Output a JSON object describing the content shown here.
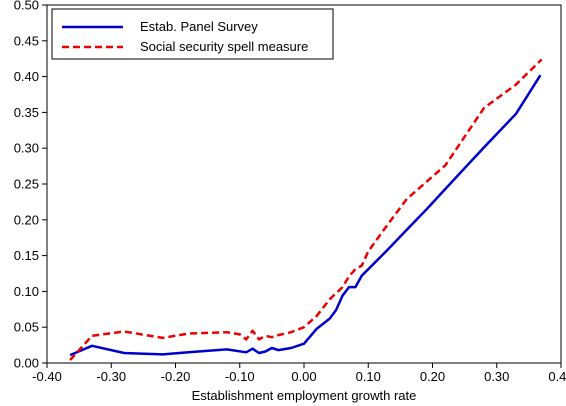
{
  "chart_data": {
    "type": "line",
    "title": "",
    "xlabel": "Establishment employment growth rate",
    "ylabel": "",
    "xlim": [
      -0.4,
      0.4
    ],
    "ylim": [
      0.0,
      0.5
    ],
    "x_ticks": [
      "-0.40",
      "-0.30",
      "-0.20",
      "-0.10",
      "0.00",
      "0.10",
      "0.20",
      "0.30",
      "0.40"
    ],
    "y_ticks": [
      "0.00",
      "0.05",
      "0.10",
      "0.15",
      "0.20",
      "0.25",
      "0.30",
      "0.35",
      "0.40",
      "0.45",
      "0.50"
    ],
    "grid": false,
    "legend_position": "top-left",
    "series": [
      {
        "name": "Estab. Panel Survey",
        "color": "#0000cc",
        "dash": "solid",
        "points": [
          [
            -0.364,
            0.011
          ],
          [
            -0.33,
            0.024
          ],
          [
            -0.28,
            0.014
          ],
          [
            -0.22,
            0.012
          ],
          [
            -0.18,
            0.015
          ],
          [
            -0.12,
            0.019
          ],
          [
            -0.09,
            0.015
          ],
          [
            -0.08,
            0.02
          ],
          [
            -0.07,
            0.014
          ],
          [
            -0.06,
            0.016
          ],
          [
            -0.05,
            0.021
          ],
          [
            -0.04,
            0.018
          ],
          [
            -0.02,
            0.021
          ],
          [
            0.0,
            0.027
          ],
          [
            0.02,
            0.048
          ],
          [
            0.04,
            0.062
          ],
          [
            0.05,
            0.074
          ],
          [
            0.06,
            0.094
          ],
          [
            0.07,
            0.106
          ],
          [
            0.08,
            0.106
          ],
          [
            0.09,
            0.122
          ],
          [
            0.1,
            0.131
          ],
          [
            0.13,
            0.158
          ],
          [
            0.16,
            0.186
          ],
          [
            0.19,
            0.214
          ],
          [
            0.22,
            0.243
          ],
          [
            0.25,
            0.272
          ],
          [
            0.28,
            0.301
          ],
          [
            0.33,
            0.348
          ],
          [
            0.368,
            0.402
          ]
        ]
      },
      {
        "name": "Social security spell measure",
        "color": "#ee0000",
        "dash": "dashed",
        "points": [
          [
            -0.364,
            0.004
          ],
          [
            -0.33,
            0.038
          ],
          [
            -0.28,
            0.044
          ],
          [
            -0.22,
            0.035
          ],
          [
            -0.18,
            0.041
          ],
          [
            -0.12,
            0.043
          ],
          [
            -0.1,
            0.04
          ],
          [
            -0.09,
            0.033
          ],
          [
            -0.08,
            0.045
          ],
          [
            -0.07,
            0.033
          ],
          [
            -0.06,
            0.038
          ],
          [
            -0.05,
            0.036
          ],
          [
            -0.04,
            0.039
          ],
          [
            -0.02,
            0.043
          ],
          [
            0.0,
            0.05
          ],
          [
            0.02,
            0.066
          ],
          [
            0.04,
            0.089
          ],
          [
            0.06,
            0.106
          ],
          [
            0.07,
            0.121
          ],
          [
            0.08,
            0.131
          ],
          [
            0.09,
            0.136
          ],
          [
            0.1,
            0.156
          ],
          [
            0.13,
            0.193
          ],
          [
            0.16,
            0.229
          ],
          [
            0.22,
            0.276
          ],
          [
            0.28,
            0.356
          ],
          [
            0.33,
            0.389
          ],
          [
            0.37,
            0.424
          ]
        ]
      }
    ]
  }
}
